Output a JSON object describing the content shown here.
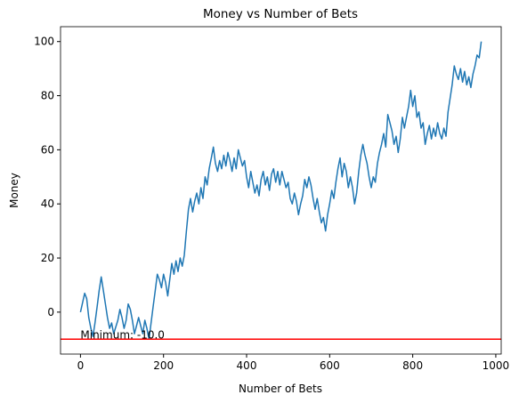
{
  "chart_data": {
    "type": "line",
    "title": "Money vs Number of Bets",
    "xlabel": "Number of Bets",
    "ylabel": "Money",
    "x": [
      0,
      10,
      15,
      20,
      25,
      30,
      35,
      40,
      45,
      50,
      55,
      60,
      65,
      70,
      75,
      80,
      90,
      95,
      100,
      105,
      110,
      115,
      120,
      125,
      130,
      135,
      140,
      145,
      150,
      155,
      160,
      165,
      170,
      175,
      180,
      185,
      190,
      195,
      200,
      205,
      210,
      215,
      220,
      225,
      230,
      235,
      240,
      245,
      250,
      255,
      260,
      265,
      270,
      275,
      280,
      285,
      290,
      295,
      300,
      305,
      310,
      315,
      320,
      325,
      330,
      335,
      340,
      345,
      350,
      355,
      360,
      365,
      370,
      375,
      380,
      385,
      390,
      395,
      400,
      405,
      410,
      415,
      420,
      425,
      430,
      435,
      440,
      445,
      450,
      455,
      460,
      465,
      470,
      475,
      480,
      485,
      490,
      495,
      500,
      505,
      510,
      515,
      520,
      525,
      530,
      535,
      540,
      545,
      550,
      555,
      560,
      565,
      570,
      575,
      580,
      585,
      590,
      595,
      600,
      605,
      610,
      615,
      620,
      625,
      630,
      635,
      640,
      645,
      650,
      655,
      660,
      665,
      670,
      675,
      680,
      685,
      690,
      695,
      700,
      705,
      710,
      715,
      720,
      725,
      730,
      735,
      740,
      745,
      750,
      755,
      760,
      765,
      770,
      775,
      780,
      785,
      790,
      795,
      800,
      805,
      810,
      815,
      820,
      825,
      830,
      835,
      840,
      845,
      850,
      855,
      860,
      865,
      870,
      875,
      880,
      885,
      890,
      895,
      900,
      905,
      910,
      915,
      920,
      925,
      930,
      935,
      940,
      945,
      950,
      955,
      960,
      965
    ],
    "values": [
      0,
      7,
      5,
      -2,
      -6,
      -9,
      -4,
      2,
      8,
      13,
      8,
      3,
      -2,
      -6,
      -4,
      -8,
      -3,
      1,
      -2,
      -6,
      -3,
      3,
      1,
      -3,
      -8,
      -5,
      -2,
      -5,
      -8,
      -3,
      -6,
      -10,
      -4,
      2,
      8,
      14,
      12,
      9,
      14,
      11,
      6,
      12,
      18,
      14,
      19,
      15,
      20,
      17,
      21,
      30,
      38,
      42,
      37,
      41,
      44,
      40,
      46,
      42,
      50,
      47,
      53,
      57,
      61,
      55,
      52,
      56,
      53,
      58,
      54,
      59,
      56,
      52,
      57,
      53,
      60,
      57,
      54,
      56,
      50,
      46,
      52,
      48,
      44,
      47,
      43,
      49,
      52,
      47,
      50,
      45,
      51,
      53,
      48,
      52,
      47,
      52,
      49,
      46,
      48,
      42,
      40,
      44,
      41,
      36,
      40,
      43,
      49,
      46,
      50,
      47,
      42,
      38,
      42,
      37,
      33,
      35,
      30,
      36,
      40,
      45,
      42,
      48,
      53,
      57,
      50,
      55,
      52,
      46,
      50,
      46,
      40,
      44,
      52,
      58,
      62,
      58,
      55,
      50,
      46,
      50,
      48,
      55,
      59,
      62,
      66,
      61,
      73,
      70,
      67,
      62,
      65,
      59,
      64,
      72,
      68,
      72,
      76,
      82,
      76,
      80,
      72,
      74,
      68,
      70,
      62,
      66,
      69,
      64,
      68,
      65,
      70,
      66,
      64,
      68,
      65,
      74,
      79,
      84,
      91,
      88,
      86,
      90,
      85,
      89,
      84,
      87,
      83,
      88,
      91,
      95,
      94,
      100
    ],
    "color": "#1f77b4",
    "hline": {
      "value": -10,
      "color": "red",
      "label": "Minimum: -10.0"
    },
    "xlim": [
      -48,
      1013
    ],
    "ylim": [
      -15.5,
      105.5
    ],
    "xticks": [
      0,
      200,
      400,
      600,
      800,
      1000
    ],
    "yticks": [
      0,
      20,
      40,
      60,
      80,
      100
    ],
    "grid": false
  }
}
